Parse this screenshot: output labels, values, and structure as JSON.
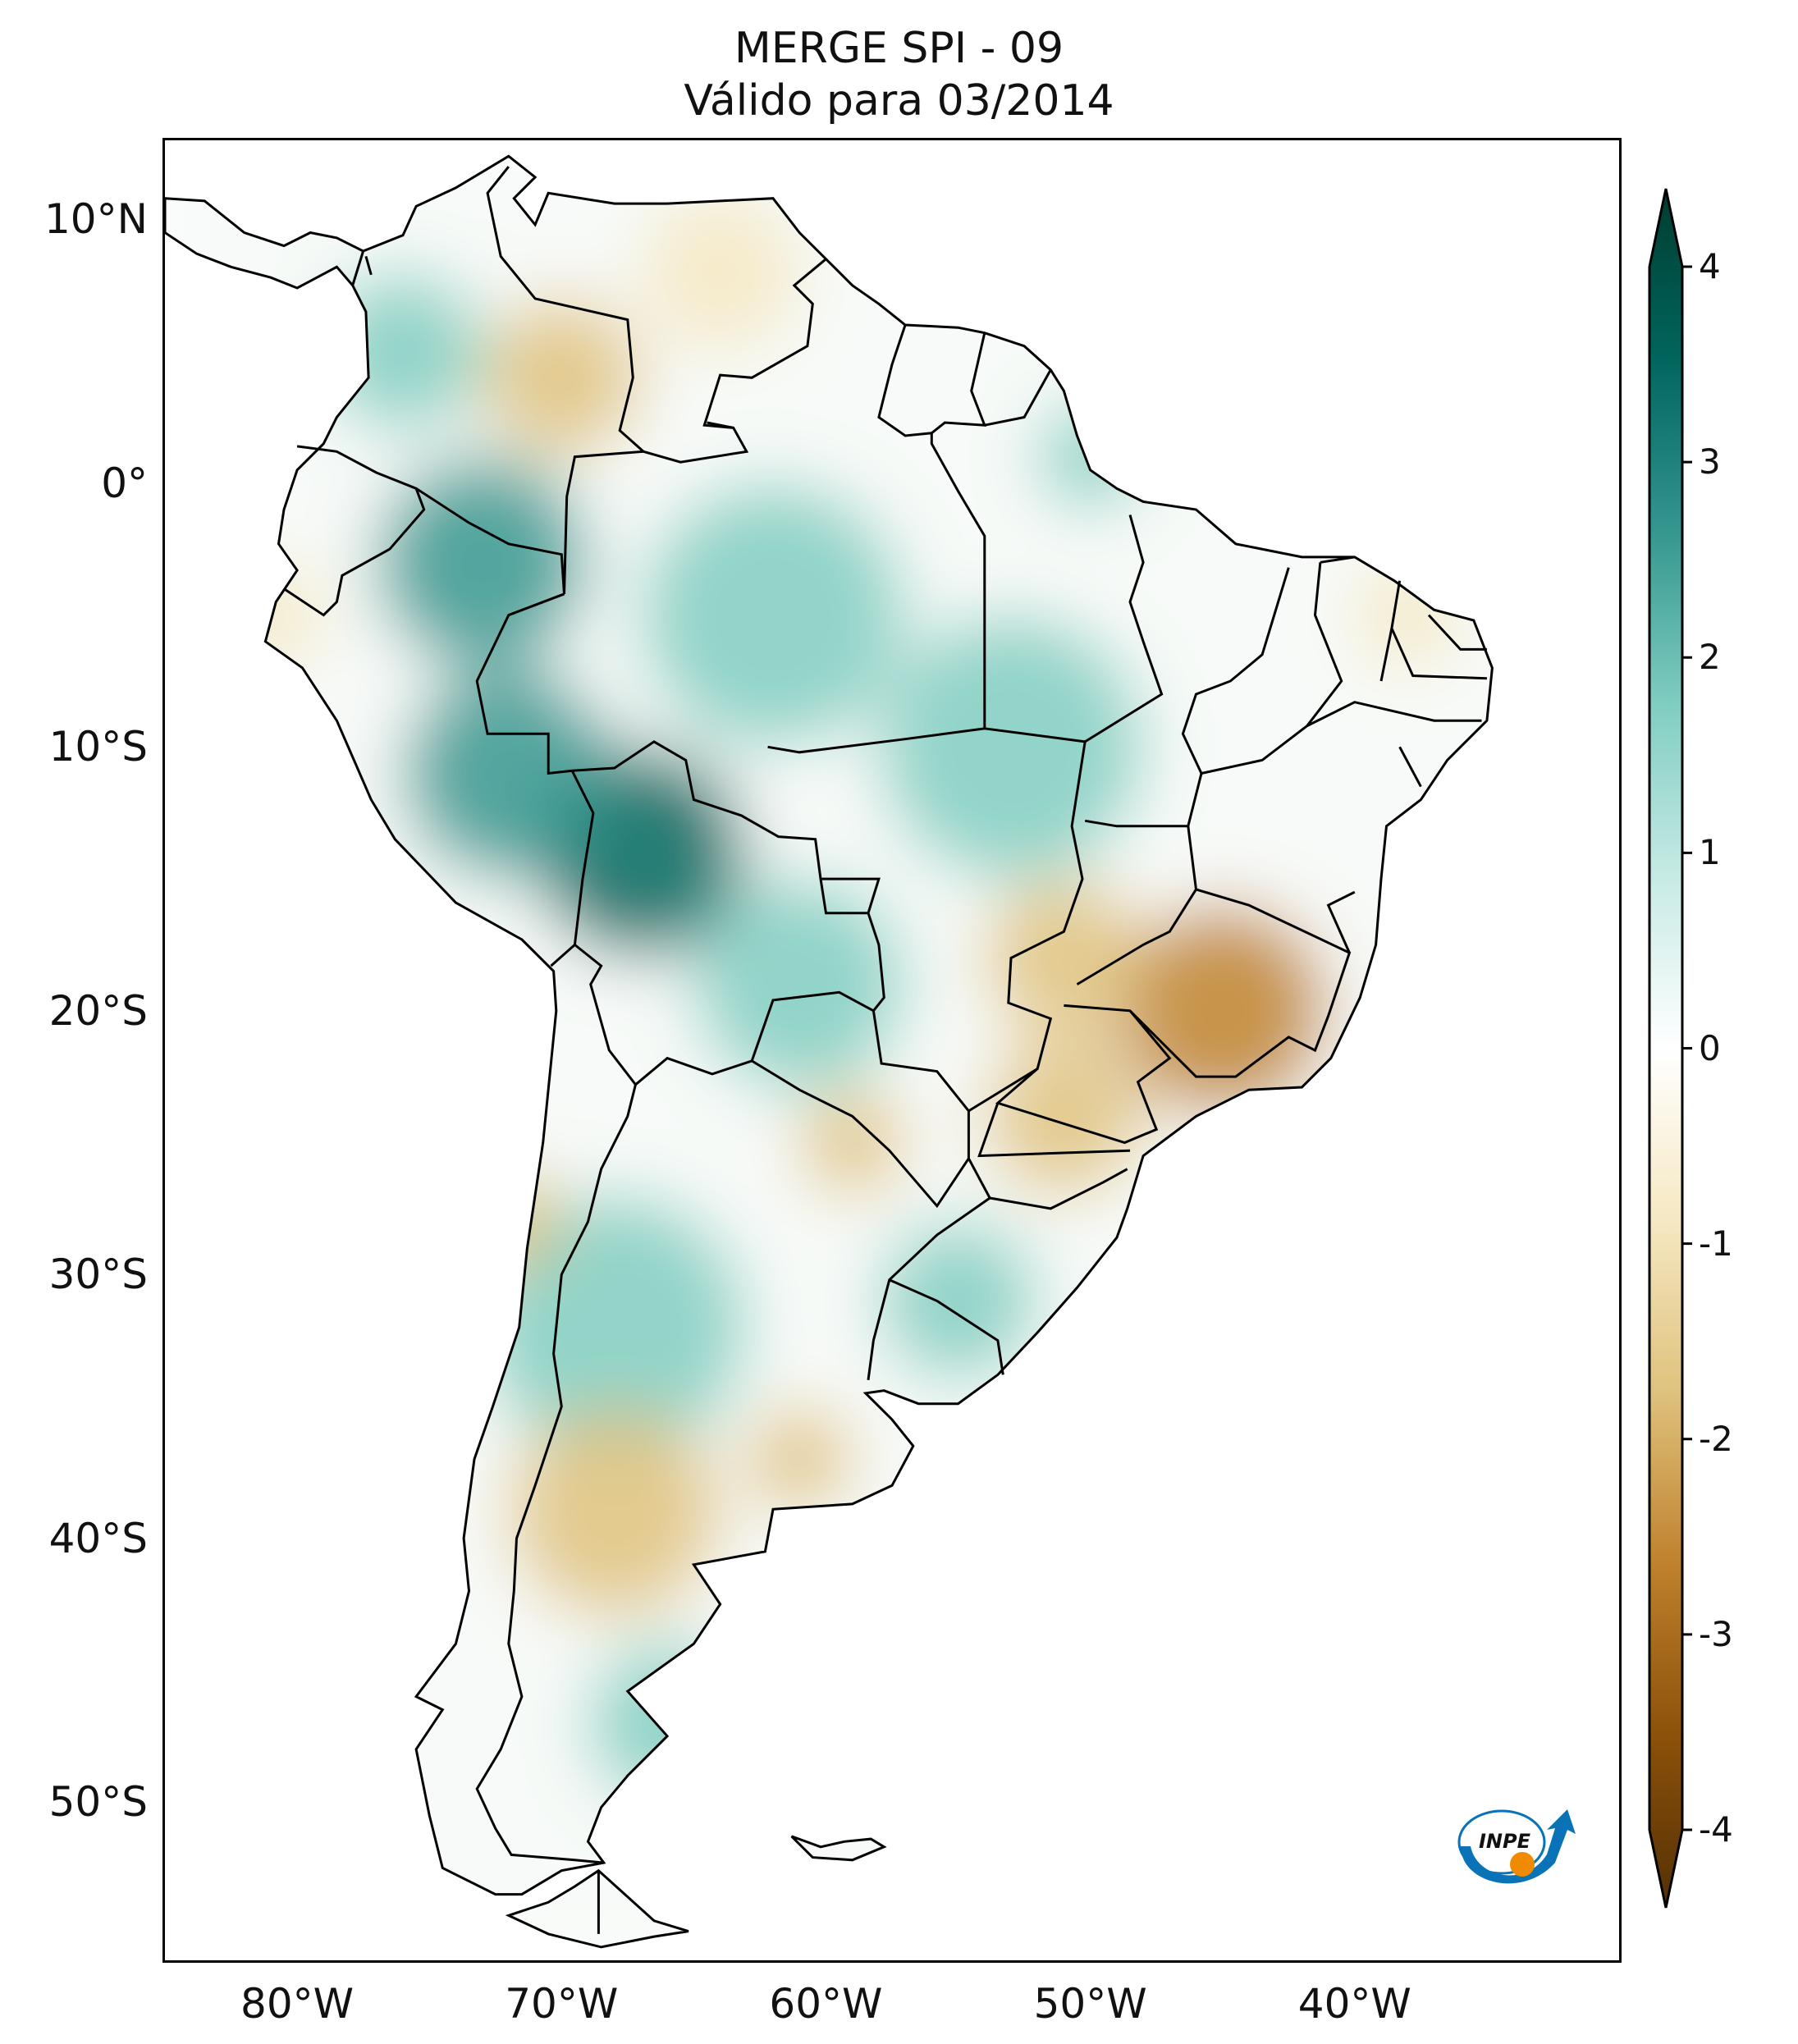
{
  "title": {
    "line1": "MERGE   SPI - 09",
    "line2": "Válido para 03/2014"
  },
  "map": {
    "extent": {
      "lon_min": -85,
      "lon_max": -30,
      "lat_min": -56,
      "lat_max": 13
    },
    "lat_ticks": [
      {
        "value": 10,
        "label": "10°N"
      },
      {
        "value": 0,
        "label": "0°"
      },
      {
        "value": -10,
        "label": "10°S"
      },
      {
        "value": -20,
        "label": "20°S"
      },
      {
        "value": -30,
        "label": "30°S"
      },
      {
        "value": -40,
        "label": "40°S"
      },
      {
        "value": -50,
        "label": "50°S"
      }
    ],
    "lon_ticks": [
      {
        "value": -80,
        "label": "80°W"
      },
      {
        "value": -70,
        "label": "70°W"
      },
      {
        "value": -60,
        "label": "60°W"
      },
      {
        "value": -50,
        "label": "50°W"
      },
      {
        "value": -40,
        "label": "40°W"
      }
    ],
    "anomalies": [
      {
        "lon": -67,
        "lat": -14,
        "value": 3.0,
        "r": 4
      },
      {
        "lon": -72,
        "lat": -11,
        "value": 2.2,
        "r": 4
      },
      {
        "lon": -73,
        "lat": -3,
        "value": 2.0,
        "r": 4
      },
      {
        "lon": -62,
        "lat": -5,
        "value": 1.8,
        "r": 5
      },
      {
        "lon": -53,
        "lat": -10,
        "value": 1.6,
        "r": 5
      },
      {
        "lon": -61,
        "lat": -19,
        "value": 1.8,
        "r": 4
      },
      {
        "lon": -68,
        "lat": -32,
        "value": 1.7,
        "r": 5
      },
      {
        "lon": -55,
        "lat": -31,
        "value": 1.4,
        "r": 3
      },
      {
        "lon": -66,
        "lat": -47,
        "value": 1.6,
        "r": 3
      },
      {
        "lon": -76,
        "lat": 5,
        "value": 1.5,
        "r": 3
      },
      {
        "lon": -50,
        "lat": 1,
        "value": 1.8,
        "r": 2
      },
      {
        "lon": -45,
        "lat": -20,
        "value": -2.4,
        "r": 4
      },
      {
        "lon": -51,
        "lat": -18,
        "value": -2.0,
        "r": 3
      },
      {
        "lon": -51,
        "lat": -24,
        "value": -1.5,
        "r": 3
      },
      {
        "lon": -68,
        "lat": -39,
        "value": -1.8,
        "r": 4
      },
      {
        "lon": -61,
        "lat": -37,
        "value": -1.6,
        "r": 2
      },
      {
        "lon": -70,
        "lat": 4,
        "value": -1.4,
        "r": 3
      },
      {
        "lon": -64,
        "lat": 8,
        "value": -1.0,
        "r": 3
      },
      {
        "lon": -38,
        "lat": -5,
        "value": -1.0,
        "r": 2
      },
      {
        "lon": -72,
        "lat": -28,
        "value": -1.5,
        "r": 2
      },
      {
        "lon": -81,
        "lat": -5,
        "value": -1.2,
        "r": 2
      },
      {
        "lon": -59,
        "lat": -25,
        "value": -1.4,
        "r": 2
      }
    ]
  },
  "colorbar": {
    "vmin": -4,
    "vmax": 4,
    "ticks": [
      "4",
      "3",
      "2",
      "1",
      "0",
      "-1",
      "-2",
      "-3",
      "-4"
    ],
    "colors": [
      "#543005",
      "#8c510a",
      "#bf812d",
      "#dfc27d",
      "#f6e8c3",
      "#ffffff",
      "#c7eae5",
      "#80cdc1",
      "#35978f",
      "#01665e",
      "#003c30"
    ]
  },
  "logo": {
    "text": "INPE",
    "blue": "#0a73b8",
    "orange": "#f08a00"
  }
}
